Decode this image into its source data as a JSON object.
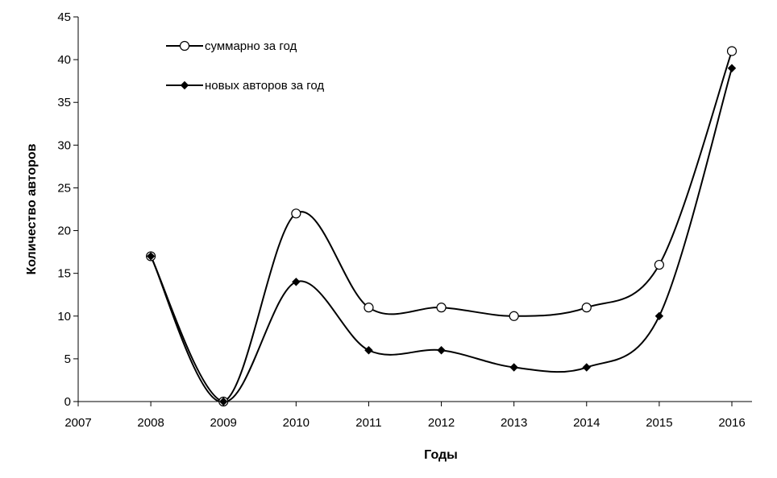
{
  "chart_data": {
    "type": "line",
    "title": "",
    "xlabel": "Годы",
    "ylabel": "Количество авторов",
    "x": [
      2008,
      2009,
      2010,
      2011,
      2012,
      2013,
      2014,
      2015,
      2016
    ],
    "xlim": [
      2007,
      2016
    ],
    "ylim": [
      0,
      45
    ],
    "x_ticks": [
      "2007",
      "2008",
      "2009",
      "2010",
      "2011",
      "2012",
      "2013",
      "2014",
      "2015",
      "2016"
    ],
    "y_ticks": [
      "0",
      "5",
      "10",
      "15",
      "20",
      "25",
      "30",
      "35",
      "40",
      "45"
    ],
    "grid": false,
    "legend_position": "top-left",
    "smooth": true,
    "series": [
      {
        "name": "суммарно за год",
        "marker": "open-circle",
        "color": "#000000",
        "values": [
          17,
          0,
          22,
          11,
          11,
          10,
          11,
          16,
          41
        ]
      },
      {
        "name": "новых авторов за год",
        "marker": "filled-diamond",
        "color": "#000000",
        "values": [
          17,
          0,
          14,
          6,
          6,
          4,
          4,
          10,
          39
        ]
      }
    ]
  }
}
